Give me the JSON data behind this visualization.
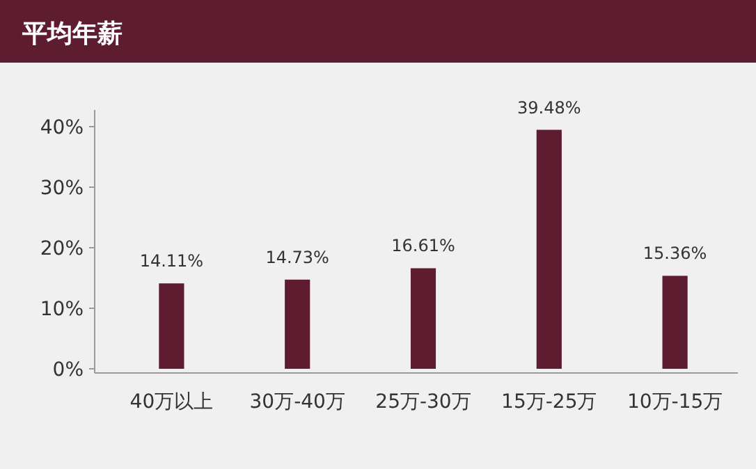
{
  "chart_data": {
    "type": "bar",
    "title": "平均年薪",
    "categories": [
      "40万以上",
      "30万-40万",
      "25万-30万",
      "15万-25万",
      "10万-15万"
    ],
    "values": [
      14.11,
      14.73,
      16.61,
      39.48,
      15.36
    ],
    "value_labels": [
      "14.11%",
      "14.73%",
      "16.61%",
      "39.48%",
      "15.36%"
    ],
    "color": "#5e1c31",
    "ylim": [
      0,
      40
    ],
    "yticks": [
      {
        "value": 0,
        "label": "0%"
      },
      {
        "value": 10,
        "label": "10%"
      },
      {
        "value": 20,
        "label": "20%"
      },
      {
        "value": 30,
        "label": "30%"
      },
      {
        "value": 40,
        "label": "40%"
      }
    ],
    "grid": false
  }
}
